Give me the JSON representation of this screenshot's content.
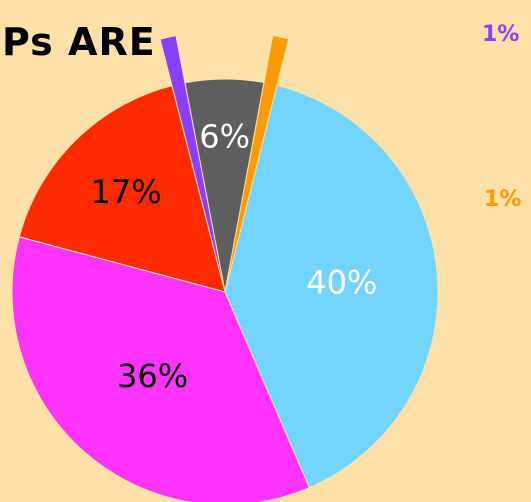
{
  "chart_data": {
    "type": "pie",
    "title": "Ps ARE",
    "slices": [
      {
        "value": 17,
        "label": "17%",
        "color": "#FF2B00",
        "label_color": "#000000"
      },
      {
        "value": 1,
        "label": "1%",
        "color": "#8A3FFC",
        "label_color": "#8A3FFC",
        "exploded": true
      },
      {
        "value": 6,
        "label": "6%",
        "color": "#5E5E5E",
        "label_color": "#FFFFFF"
      },
      {
        "value": 1,
        "label": "1%",
        "color": "#FF9A00",
        "label_color": "#FF9A00",
        "exploded": true
      },
      {
        "value": 40,
        "label": "40%",
        "color": "#73D4FF",
        "label_color": "#FFFFFF"
      },
      {
        "value": 36,
        "label": "36%",
        "color": "#FF33FF",
        "label_color": "#000000"
      }
    ],
    "background": "#FFE0A8"
  }
}
